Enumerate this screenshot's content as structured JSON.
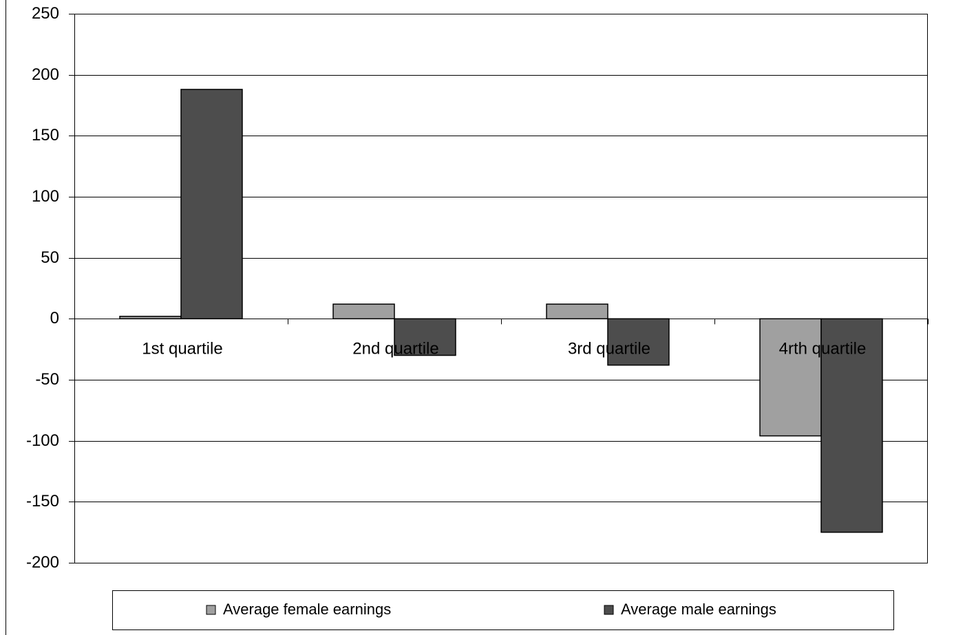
{
  "chart_data": {
    "type": "bar",
    "categories": [
      "1st quartile",
      "2nd quartile",
      "3rd quartile",
      "4rth quartile"
    ],
    "series": [
      {
        "name": "Average female earnings",
        "color": "#a0a0a0",
        "values": [
          2,
          12,
          12,
          -96
        ]
      },
      {
        "name": "Average male earnings",
        "color": "#4d4d4d",
        "values": [
          188,
          -30,
          -38,
          -175
        ]
      }
    ],
    "ylim": [
      -200,
      250
    ],
    "yticks": [
      -200,
      -150,
      -100,
      -50,
      0,
      50,
      100,
      150,
      200,
      250
    ],
    "grid": true,
    "legend": "bottom"
  }
}
